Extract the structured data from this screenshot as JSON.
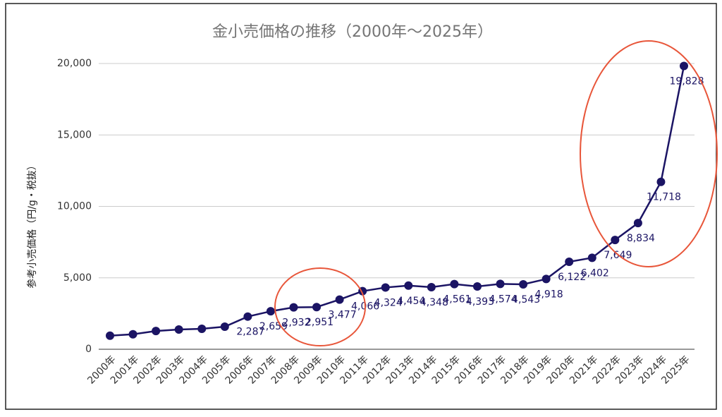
{
  "chart_data": {
    "type": "line",
    "title": "金小売価格の推移（2000年〜2025年）",
    "y_label": "参考小売価格（円/g・税抜）",
    "categories": [
      "2000年",
      "2001年",
      "2002年",
      "2003年",
      "2004年",
      "2005年",
      "2006年",
      "2007年",
      "2008年",
      "2009年",
      "2010年",
      "2011年",
      "2012年",
      "2013年",
      "2014年",
      "2015年",
      "2016年",
      "2017年",
      "2018年",
      "2019年",
      "2020年",
      "2021年",
      "2022年",
      "2023年",
      "2024年",
      "2025年"
    ],
    "series": [
      {
        "color": "#1b1464",
        "values": [
          950,
          1050,
          1280,
          1380,
          1430,
          1580,
          2287,
          2659,
          2932,
          2951,
          3477,
          4066,
          4324,
          4454,
          4348,
          4561,
          4393,
          4574,
          4543,
          4918,
          6122,
          6402,
          7649,
          8834,
          11718,
          19828
        ],
        "value_labels": [
          null,
          null,
          null,
          null,
          null,
          null,
          "2,287",
          "2,659",
          "2,932",
          "2,951",
          "3,477",
          "4,066",
          "4,324",
          "4,454",
          "4,348",
          "4,561",
          "4,393",
          "4,574",
          "4,543",
          "4,918",
          "6,122",
          "6,402",
          "7,649",
          "8,834",
          "11,718",
          "19,828"
        ]
      }
    ],
    "ylim": [
      0,
      20000
    ],
    "yticks": [
      {
        "value": 0,
        "label": "0"
      },
      {
        "value": 5000,
        "label": "5,000"
      },
      {
        "value": 10000,
        "label": "10,000"
      },
      {
        "value": 15000,
        "label": "15,000"
      },
      {
        "value": 20000,
        "label": "20,000"
      }
    ],
    "grid": true
  }
}
